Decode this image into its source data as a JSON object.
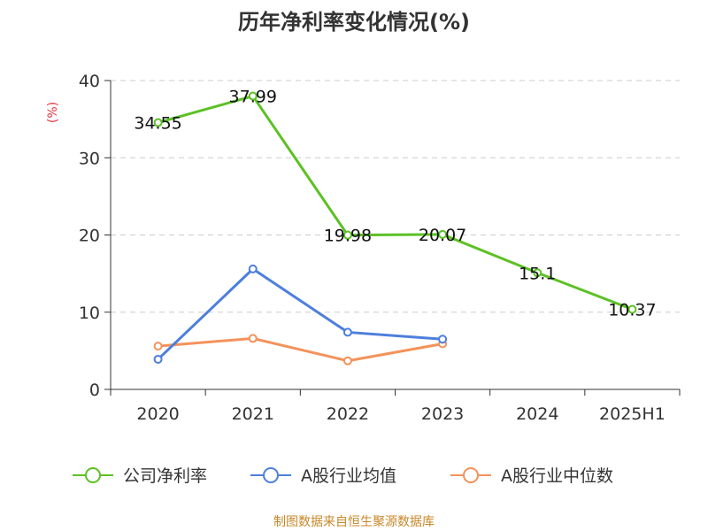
{
  "chart_data": {
    "type": "line",
    "title": "历年净利率变化情况(%)",
    "ylabel": "(%)",
    "categories": [
      "2020",
      "2021",
      "2022",
      "2023",
      "2024",
      "2025H1"
    ],
    "ylim": [
      0,
      40
    ],
    "yticks": [
      "0",
      "10",
      "20",
      "30",
      "40"
    ],
    "grid": true,
    "legend_position": "bottom",
    "series": [
      {
        "name": "公司净利率",
        "color": "#5cc124",
        "values": [
          34.55,
          37.99,
          19.98,
          20.07,
          15.1,
          10.37
        ],
        "labels": [
          "34.55",
          "37.99",
          "19.98",
          "20.07",
          "15.1",
          "10.37"
        ]
      },
      {
        "name": "A股行业均值",
        "color": "#4d7fdc",
        "values": [
          3.9,
          15.6,
          7.4,
          6.5,
          null,
          null
        ]
      },
      {
        "name": "A股行业中位数",
        "color": "#f4925a",
        "values": [
          5.6,
          6.6,
          3.7,
          5.9,
          null,
          null
        ]
      }
    ]
  },
  "source": "制图数据来自恒生聚源数据库"
}
